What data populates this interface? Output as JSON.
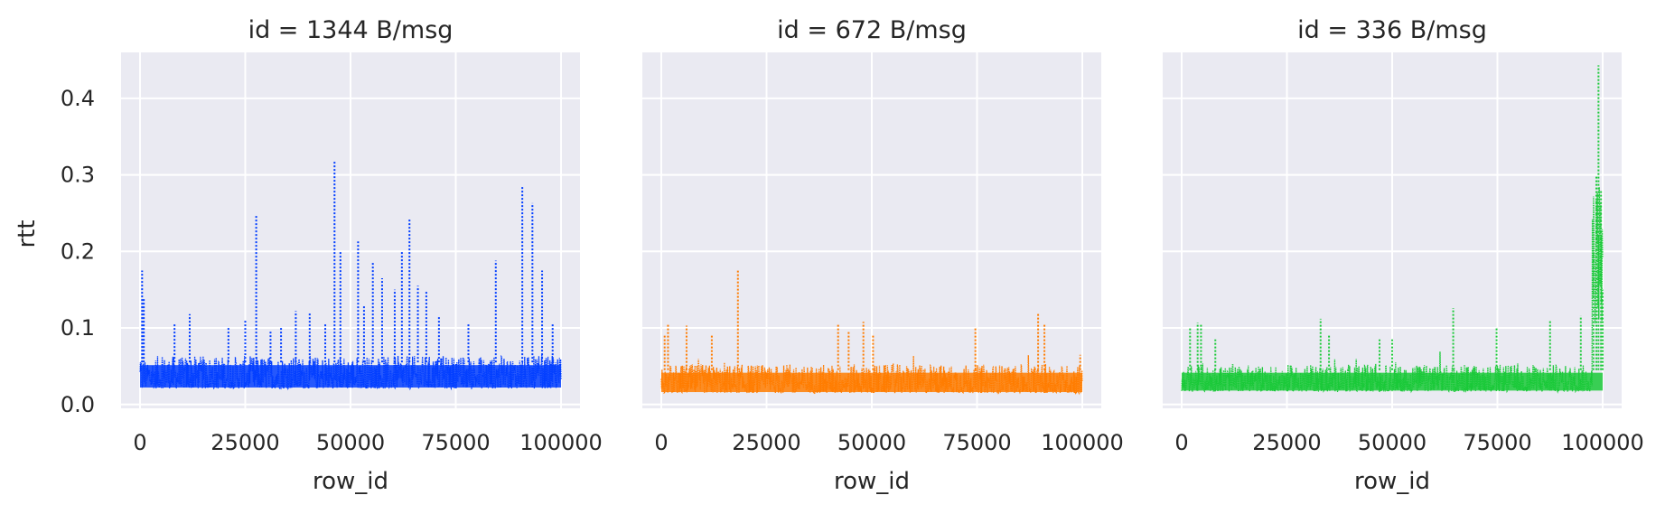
{
  "chart_data": {
    "type": "line",
    "style": "faceted dotted line plot",
    "ylabel": "rtt",
    "xlabel": "row_id",
    "ylim": [
      -0.005,
      0.46
    ],
    "xlim": [
      -4500,
      104500
    ],
    "yticks": [
      "0.0",
      "0.1",
      "0.2",
      "0.3",
      "0.4"
    ],
    "xticks": [
      "0",
      "25000",
      "50000",
      "75000",
      "100000"
    ],
    "grid": true,
    "background": "#eaeaf2",
    "panels": [
      {
        "title": "id = 1344 B/msg",
        "color": "#023eff",
        "baseline": {
          "low": 0.021,
          "high": 0.055
        },
        "spikes": [
          {
            "x": 500,
            "y": 0.175
          },
          {
            "x": 900,
            "y": 0.14
          },
          {
            "x": 8200,
            "y": 0.105
          },
          {
            "x": 11800,
            "y": 0.118
          },
          {
            "x": 21000,
            "y": 0.1
          },
          {
            "x": 25000,
            "y": 0.11
          },
          {
            "x": 27600,
            "y": 0.247
          },
          {
            "x": 31000,
            "y": 0.095
          },
          {
            "x": 33500,
            "y": 0.1
          },
          {
            "x": 37000,
            "y": 0.122
          },
          {
            "x": 40300,
            "y": 0.12
          },
          {
            "x": 44000,
            "y": 0.105
          },
          {
            "x": 46200,
            "y": 0.318
          },
          {
            "x": 47600,
            "y": 0.2
          },
          {
            "x": 51800,
            "y": 0.213
          },
          {
            "x": 53200,
            "y": 0.13
          },
          {
            "x": 55300,
            "y": 0.185
          },
          {
            "x": 57500,
            "y": 0.165
          },
          {
            "x": 60500,
            "y": 0.15
          },
          {
            "x": 62200,
            "y": 0.2
          },
          {
            "x": 64000,
            "y": 0.243
          },
          {
            "x": 66000,
            "y": 0.155
          },
          {
            "x": 68000,
            "y": 0.148
          },
          {
            "x": 71000,
            "y": 0.115
          },
          {
            "x": 78000,
            "y": 0.105
          },
          {
            "x": 84500,
            "y": 0.188
          },
          {
            "x": 90800,
            "y": 0.286
          },
          {
            "x": 93200,
            "y": 0.263
          },
          {
            "x": 95500,
            "y": 0.175
          },
          {
            "x": 98000,
            "y": 0.105
          }
        ]
      },
      {
        "title": "id = 672 B/msg",
        "color": "#ff7c00",
        "baseline": {
          "low": 0.015,
          "high": 0.045
        },
        "spikes": [
          {
            "x": 800,
            "y": 0.09
          },
          {
            "x": 1600,
            "y": 0.105
          },
          {
            "x": 6000,
            "y": 0.103
          },
          {
            "x": 12000,
            "y": 0.09
          },
          {
            "x": 18200,
            "y": 0.176
          },
          {
            "x": 42000,
            "y": 0.105
          },
          {
            "x": 44500,
            "y": 0.095
          },
          {
            "x": 48000,
            "y": 0.108
          },
          {
            "x": 50300,
            "y": 0.09
          },
          {
            "x": 74600,
            "y": 0.1
          },
          {
            "x": 89500,
            "y": 0.12
          },
          {
            "x": 91000,
            "y": 0.105
          },
          {
            "x": 99500,
            "y": 0.065
          }
        ]
      },
      {
        "title": "id = 336 B/msg",
        "color": "#1ac938",
        "baseline": {
          "low": 0.017,
          "high": 0.045
        },
        "spikes": [
          {
            "x": 2000,
            "y": 0.1
          },
          {
            "x": 3800,
            "y": 0.107
          },
          {
            "x": 4600,
            "y": 0.105
          },
          {
            "x": 8000,
            "y": 0.085
          },
          {
            "x": 33000,
            "y": 0.112
          },
          {
            "x": 35000,
            "y": 0.09
          },
          {
            "x": 47000,
            "y": 0.085
          },
          {
            "x": 50000,
            "y": 0.085
          },
          {
            "x": 64500,
            "y": 0.126
          },
          {
            "x": 74800,
            "y": 0.1
          },
          {
            "x": 87500,
            "y": 0.11
          },
          {
            "x": 94800,
            "y": 0.116
          },
          {
            "x": 97800,
            "y": 0.2
          },
          {
            "x": 98500,
            "y": 0.3
          },
          {
            "x": 99000,
            "y": 0.443
          },
          {
            "x": 99600,
            "y": 0.28
          },
          {
            "x": 100000,
            "y": 0.15
          }
        ],
        "tail": {
          "from": 97500,
          "to": 100000,
          "low": 0.1,
          "high": 0.29
        }
      }
    ]
  }
}
